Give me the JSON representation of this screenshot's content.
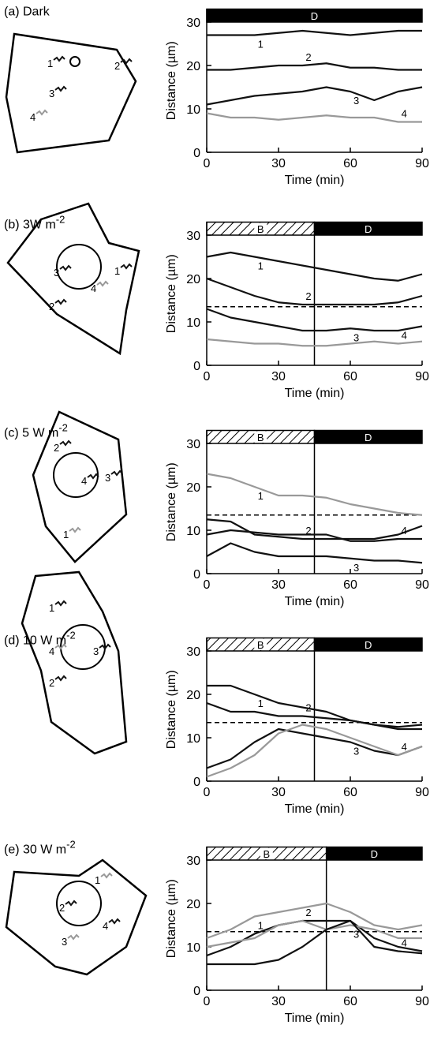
{
  "chart_data": [
    {
      "type": "line",
      "panel_label": "(a) Dark",
      "x_label": "Time (min)",
      "y_label": "Distance (µm)",
      "x": [
        0,
        10,
        20,
        30,
        40,
        50,
        60,
        70,
        80,
        90
      ],
      "xlim": [
        0,
        90
      ],
      "xticks": [
        0,
        30,
        60,
        90
      ],
      "ylim": [
        0,
        33
      ],
      "yticks": [
        0,
        10,
        20,
        30
      ],
      "periods": [
        {
          "label": "D",
          "start": 0,
          "end": 90,
          "style": "dark"
        }
      ],
      "series": [
        {
          "name": "1",
          "color": "#111111",
          "values": [
            27,
            27,
            27,
            27.5,
            28,
            27.5,
            27,
            27.5,
            28,
            28
          ]
        },
        {
          "name": "2",
          "color": "#111111",
          "values": [
            19,
            19,
            19.5,
            20,
            20,
            20.5,
            19.5,
            19.5,
            19,
            19
          ]
        },
        {
          "name": "3",
          "color": "#111111",
          "values": [
            11,
            12,
            13,
            13.5,
            14,
            15,
            14,
            12,
            14,
            15
          ]
        },
        {
          "name": "4",
          "color": "#999999",
          "values": [
            9,
            8,
            8,
            7.5,
            8,
            8.5,
            8,
            8,
            7,
            7
          ]
        }
      ]
    },
    {
      "type": "line",
      "panel_label": "(b) 3W m",
      "panel_label_sup": "-2",
      "x_label": "Time (min)",
      "y_label": "Distance (µm)",
      "x": [
        0,
        10,
        20,
        30,
        40,
        50,
        60,
        70,
        80,
        90
      ],
      "xlim": [
        0,
        90
      ],
      "xticks": [
        0,
        30,
        60,
        90
      ],
      "ylim": [
        0,
        33
      ],
      "yticks": [
        0,
        10,
        20,
        30
      ],
      "periods": [
        {
          "label": "B",
          "start": 0,
          "end": 45,
          "style": "hatch"
        },
        {
          "label": "D",
          "start": 45,
          "end": 90,
          "style": "dark"
        }
      ],
      "reference_line": 13.5,
      "series": [
        {
          "name": "1",
          "color": "#111111",
          "values": [
            25,
            26,
            25,
            24,
            23,
            22,
            21,
            20,
            19.5,
            21
          ]
        },
        {
          "name": "2",
          "color": "#111111",
          "values": [
            20,
            18,
            16,
            14.5,
            14,
            14,
            14,
            14,
            14.5,
            16
          ]
        },
        {
          "name": "3",
          "color": "#111111",
          "values": [
            13,
            11,
            10,
            9,
            8,
            8,
            8.5,
            8,
            8,
            9
          ]
        },
        {
          "name": "4",
          "color": "#999999",
          "values": [
            6,
            5.5,
            5,
            5,
            4.5,
            4.5,
            5,
            5.5,
            5,
            5.5
          ]
        }
      ]
    },
    {
      "type": "line",
      "panel_label": "(c) 5 W m",
      "panel_label_sup": "-2",
      "x_label": "Time (min)",
      "y_label": "Distance (µm)",
      "x": [
        0,
        10,
        20,
        30,
        40,
        50,
        60,
        70,
        80,
        90
      ],
      "xlim": [
        0,
        90
      ],
      "xticks": [
        0,
        30,
        60,
        90
      ],
      "ylim": [
        0,
        33
      ],
      "yticks": [
        0,
        10,
        20,
        30
      ],
      "periods": [
        {
          "label": "B",
          "start": 0,
          "end": 45,
          "style": "hatch"
        },
        {
          "label": "D",
          "start": 45,
          "end": 90,
          "style": "dark"
        }
      ],
      "reference_line": 13.5,
      "series": [
        {
          "name": "1",
          "color": "#999999",
          "values": [
            23,
            22,
            20,
            18,
            18,
            17.5,
            16,
            15,
            14,
            13.5
          ]
        },
        {
          "name": "2",
          "color": "#111111",
          "values": [
            12.5,
            12,
            9,
            8.5,
            8,
            8,
            8,
            8,
            9,
            11
          ]
        },
        {
          "name": "3",
          "color": "#111111",
          "values": [
            4,
            7,
            5,
            4,
            4,
            4,
            3.5,
            3,
            3,
            2.5
          ]
        },
        {
          "name": "4",
          "color": "#111111",
          "values": [
            9,
            10,
            9.5,
            9,
            9,
            9,
            7.5,
            7.5,
            8,
            8
          ]
        }
      ]
    },
    {
      "type": "line",
      "panel_label": "(d) 10 W m",
      "panel_label_sup": "-2",
      "x_label": "Time (min)",
      "y_label": "Distance (µm)",
      "x": [
        0,
        10,
        20,
        30,
        40,
        50,
        60,
        70,
        80,
        90
      ],
      "xlim": [
        0,
        90
      ],
      "xticks": [
        0,
        30,
        60,
        90
      ],
      "ylim": [
        0,
        33
      ],
      "yticks": [
        0,
        10,
        20,
        30
      ],
      "periods": [
        {
          "label": "B",
          "start": 0,
          "end": 45,
          "style": "hatch"
        },
        {
          "label": "D",
          "start": 45,
          "end": 90,
          "style": "dark"
        }
      ],
      "reference_line": 13.5,
      "series": [
        {
          "name": "1",
          "color": "#111111",
          "values": [
            22,
            22,
            20,
            18,
            17,
            16,
            14,
            13,
            12,
            12
          ]
        },
        {
          "name": "2",
          "color": "#111111",
          "values": [
            18,
            16,
            16,
            15,
            15,
            14.5,
            14,
            13,
            12.5,
            13
          ]
        },
        {
          "name": "3",
          "color": "#111111",
          "values": [
            3,
            5,
            9,
            12,
            11,
            10,
            9,
            7,
            6,
            8
          ]
        },
        {
          "name": "4",
          "color": "#999999",
          "values": [
            1,
            3,
            6,
            11,
            13,
            12,
            10,
            8,
            6,
            8
          ]
        }
      ]
    },
    {
      "type": "line",
      "panel_label": "(e) 30 W m",
      "panel_label_sup": "-2",
      "x_label": "Time (min)",
      "y_label": "Distance (µm)",
      "x": [
        0,
        10,
        20,
        30,
        40,
        50,
        60,
        70,
        80,
        90
      ],
      "xlim": [
        0,
        90
      ],
      "xticks": [
        0,
        30,
        60,
        90
      ],
      "ylim": [
        0,
        33
      ],
      "yticks": [
        0,
        10,
        20,
        30
      ],
      "periods": [
        {
          "label": "B",
          "start": 0,
          "end": 50,
          "style": "hatch"
        },
        {
          "label": "D",
          "start": 50,
          "end": 90,
          "style": "dark"
        }
      ],
      "reference_line": 13.5,
      "series": [
        {
          "name": "1",
          "color": "#999999",
          "values": [
            12,
            14,
            17,
            18,
            19,
            20,
            18,
            15,
            14,
            15
          ]
        },
        {
          "name": "2",
          "color": "#111111",
          "values": [
            8,
            10,
            13,
            15,
            16,
            16,
            16,
            12,
            10,
            9
          ]
        },
        {
          "name": "3",
          "color": "#999999",
          "values": [
            10,
            11,
            12,
            15,
            16,
            14,
            15,
            14,
            12,
            12
          ]
        },
        {
          "name": "4",
          "color": "#111111",
          "values": [
            6,
            6,
            6,
            7,
            10,
            14,
            16,
            10,
            9,
            8.5
          ]
        }
      ]
    }
  ]
}
